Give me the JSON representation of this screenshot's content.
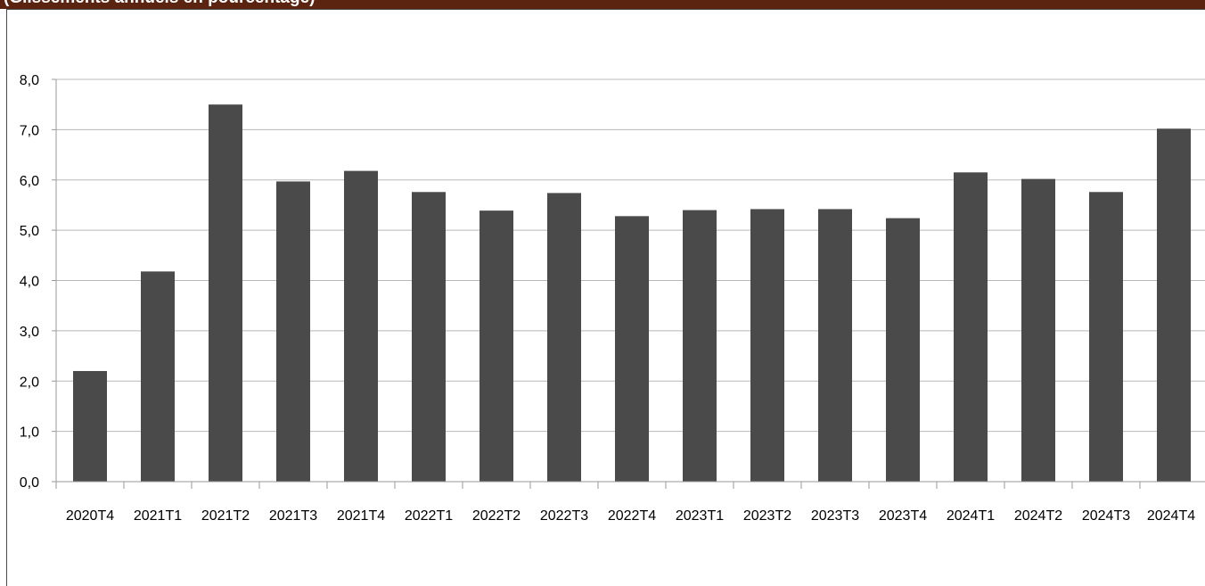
{
  "header": {
    "title": "(Glissements annuels en pourcentage)"
  },
  "colors": {
    "header_bg": "#5a2410",
    "bar": "#4a4a4a",
    "grid": "#b8b8b8",
    "axis": "#9a9a9a"
  },
  "chart_data": {
    "type": "bar",
    "title": "",
    "xlabel": "",
    "ylabel": "",
    "categories": [
      "2020T4",
      "2021T1",
      "2021T2",
      "2021T3",
      "2021T4",
      "2022T1",
      "2022T2",
      "2022T3",
      "2022T4",
      "2023T1",
      "2023T2",
      "2023T3",
      "2023T4",
      "2024T1",
      "2024T2",
      "2024T3",
      "2024T4"
    ],
    "values": [
      2.2,
      4.18,
      7.5,
      5.97,
      6.18,
      5.76,
      5.39,
      5.74,
      5.28,
      5.4,
      5.42,
      5.42,
      5.24,
      6.15,
      6.02,
      5.76,
      7.02
    ],
    "ylim": [
      0,
      8
    ],
    "yticks": [
      "0,0",
      "1,0",
      "2,0",
      "3,0",
      "4,0",
      "5,0",
      "6,0",
      "7,0",
      "8,0"
    ],
    "grid": true,
    "legend": "none"
  }
}
